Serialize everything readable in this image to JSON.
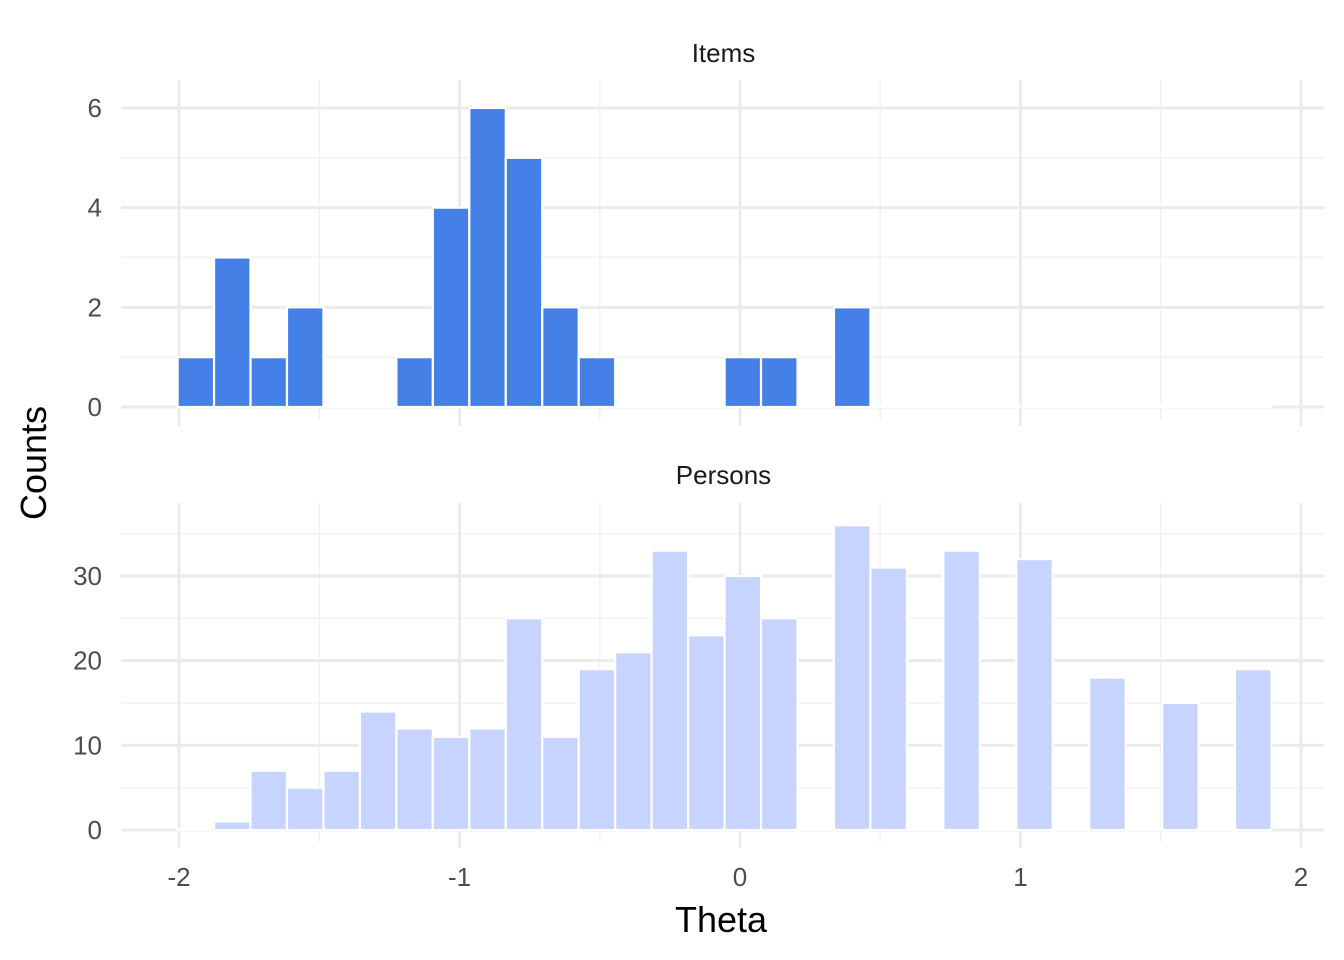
{
  "chart_data": {
    "type": "bar",
    "xlabel": "Theta",
    "ylabel": "Counts",
    "x_ticks": [
      -2,
      -1,
      0,
      1,
      2
    ],
    "x_tick_labels": [
      "-2",
      "-1",
      "0",
      "1",
      "2"
    ],
    "xlim": [
      -2.2,
      2.1
    ],
    "bin_width": 0.13,
    "colors": {
      "Items": "#4580e6",
      "Persons": "#c6d4ff",
      "bar_edge": "#ffffff",
      "grid": "#ebebeb"
    },
    "panels": [
      {
        "name": "Items",
        "label": "Items",
        "ylim": [
          0,
          6.2
        ],
        "y_ticks": [
          0,
          2,
          4,
          6
        ],
        "y_tick_labels": [
          "0",
          "2",
          "4",
          "6"
        ],
        "bin_centers": [
          -1.94,
          -1.81,
          -1.68,
          -1.55,
          -1.42,
          -1.29,
          -1.16,
          -1.03,
          -0.9,
          -0.77,
          -0.64,
          -0.51,
          -0.38,
          -0.25,
          -0.12,
          0.01,
          0.14,
          0.27,
          0.4,
          0.53,
          0.66,
          0.79,
          0.92,
          1.05,
          1.18,
          1.31,
          1.44,
          1.57,
          1.7,
          1.83
        ],
        "values": [
          1,
          3,
          1,
          2,
          0,
          0,
          1,
          4,
          6,
          5,
          2,
          1,
          0,
          0,
          0,
          1,
          1,
          0,
          2,
          0,
          0,
          0,
          0,
          0,
          0,
          0,
          0,
          0,
          0,
          0
        ]
      },
      {
        "name": "Persons",
        "label": "Persons",
        "ylim": [
          0,
          36.5
        ],
        "y_ticks": [
          0,
          10,
          20,
          30
        ],
        "y_tick_labels": [
          "0",
          "10",
          "20",
          "30"
        ],
        "bin_centers": [
          -1.94,
          -1.81,
          -1.68,
          -1.55,
          -1.42,
          -1.29,
          -1.16,
          -1.03,
          -0.9,
          -0.77,
          -0.64,
          -0.51,
          -0.38,
          -0.25,
          -0.12,
          0.01,
          0.14,
          0.27,
          0.4,
          0.53,
          0.66,
          0.79,
          0.92,
          1.05,
          1.18,
          1.31,
          1.44,
          1.57,
          1.7,
          1.83
        ],
        "values": [
          0,
          1,
          7,
          5,
          7,
          14,
          12,
          11,
          12,
          25,
          11,
          19,
          21,
          33,
          23,
          30,
          25,
          0,
          36,
          31,
          0,
          33,
          0,
          32,
          0,
          18,
          0,
          15,
          0,
          19
        ]
      }
    ]
  }
}
